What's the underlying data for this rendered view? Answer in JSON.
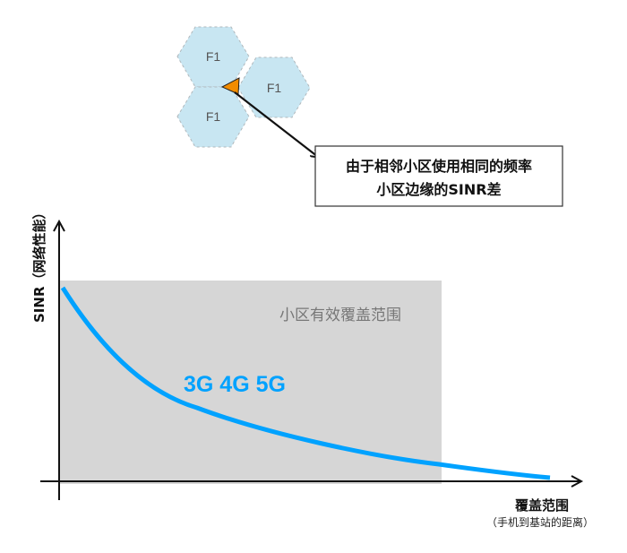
{
  "cells": [
    {
      "label": "F1"
    },
    {
      "label": "F1"
    },
    {
      "label": "F1"
    }
  ],
  "note": {
    "line1": "由于相邻小区使用相同的频率",
    "line2": "小区边缘的SINR差"
  },
  "chart": {
    "ylabel": "SINR（网络性能）",
    "xlabel": "覆盖范围",
    "xlabel_sub": "（手机到基站的距离）",
    "region_label": "小区有效覆盖范围",
    "series_label": "3G 4G 5G"
  },
  "colors": {
    "cell_fill": "#c8e6f2",
    "interference_marker": "#f28c00",
    "region_fill": "#d6d6d6",
    "curve": "#00a2ff"
  }
}
